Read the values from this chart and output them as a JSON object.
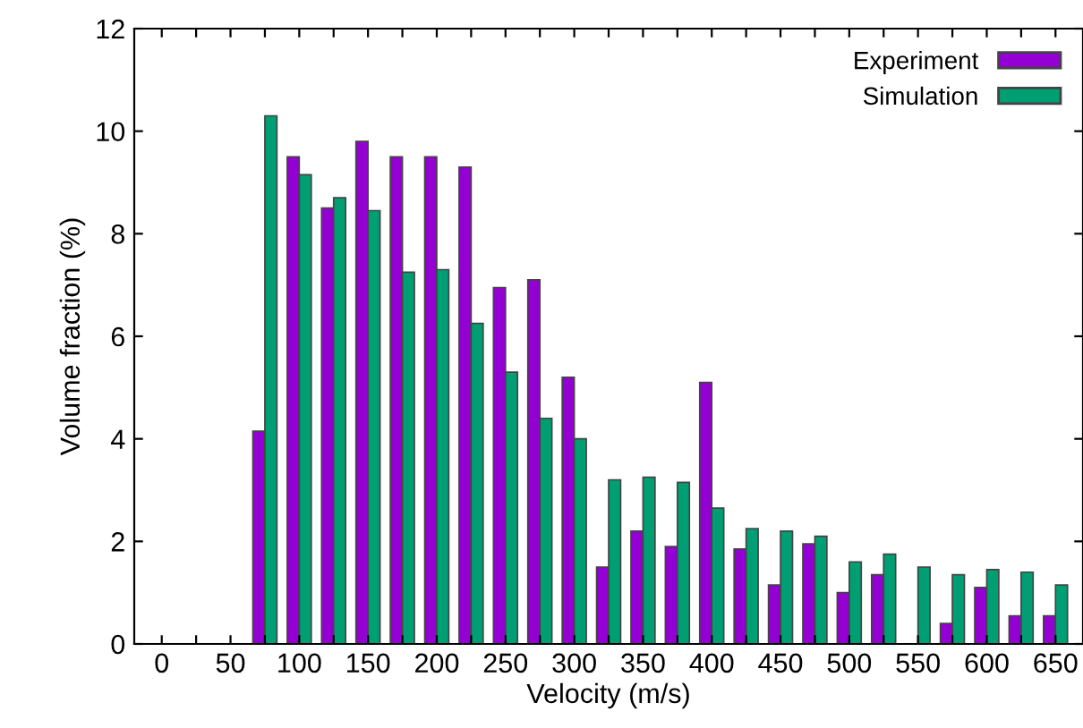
{
  "chart_data": {
    "type": "bar",
    "xlabel": "Velocity (m/s)",
    "ylabel": "Volume fraction (%)",
    "categories": [
      "0",
      null,
      "50",
      null,
      "100",
      null,
      "150",
      null,
      "200",
      null,
      "250",
      null,
      "300",
      null,
      "350",
      null,
      "400",
      null,
      "450",
      null,
      "500",
      null,
      "550",
      null,
      "600",
      null,
      "650"
    ],
    "series": [
      {
        "name": "Experiment",
        "color": "#9400d3",
        "values": [
          0,
          0,
          0,
          4.15,
          9.5,
          8.5,
          9.8,
          9.5,
          9.5,
          9.3,
          6.95,
          7.1,
          5.2,
          1.5,
          2.2,
          1.9,
          5.1,
          1.85,
          1.15,
          1.95,
          1.0,
          1.35,
          0,
          0.4,
          1.1,
          0.55,
          0.55
        ]
      },
      {
        "name": "Simulation",
        "color": "#009e73",
        "values": [
          0,
          0,
          0,
          10.3,
          9.15,
          8.7,
          8.45,
          7.25,
          7.3,
          6.25,
          5.3,
          4.4,
          4.0,
          3.2,
          3.25,
          3.15,
          2.65,
          2.25,
          2.2,
          2.1,
          1.6,
          1.75,
          1.5,
          1.35,
          1.45,
          1.4,
          1.15
        ]
      }
    ],
    "ylim": [
      0,
      12
    ],
    "yticks": [
      0,
      2,
      4,
      6,
      8,
      10,
      12
    ],
    "grid": false,
    "legend": "top right"
  }
}
